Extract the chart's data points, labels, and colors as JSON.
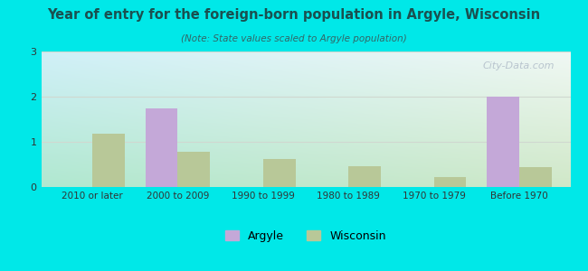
{
  "title": "Year of entry for the foreign-born population in Argyle, Wisconsin",
  "subtitle": "(Note: State values scaled to Argyle population)",
  "categories": [
    "2010 or later",
    "2000 to 2009",
    "1990 to 1999",
    "1980 to 1989",
    "1970 to 1979",
    "Before 1970"
  ],
  "argyle_values": [
    0,
    1.75,
    0,
    0,
    0,
    2.0
  ],
  "wisconsin_values": [
    1.18,
    0.78,
    0.62,
    0.47,
    0.22,
    0.45
  ],
  "argyle_color": "#c4a8d8",
  "wisconsin_color": "#b8c898",
  "background_color": "#00e8e8",
  "plot_bg_topleft": "#c8f0e8",
  "plot_bg_topright": "#e8f0f8",
  "plot_bg_bottomleft": "#b8e8d0",
  "plot_bg_bottomright": "#d8edd8",
  "grid_color": "#d0d8d0",
  "title_color": "#1a5050",
  "subtitle_color": "#336666",
  "watermark_color": "#b0bcc8",
  "ylim": [
    0,
    3
  ],
  "yticks": [
    0,
    1,
    2,
    3
  ],
  "legend_argyle": "Argyle",
  "legend_wisconsin": "Wisconsin",
  "watermark": "City-Data.com",
  "bar_width": 0.38
}
